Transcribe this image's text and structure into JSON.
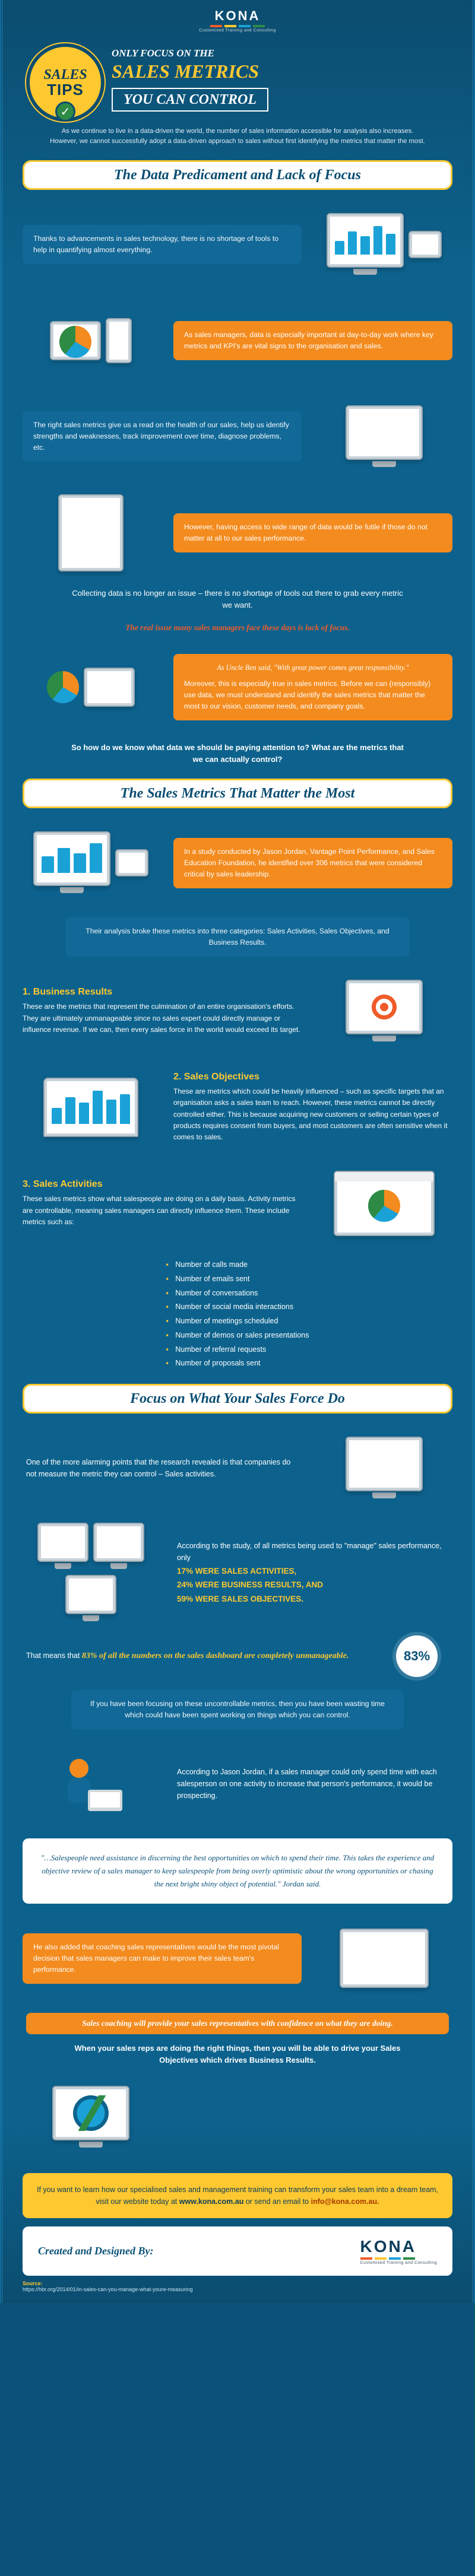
{
  "brand": {
    "name": "KONA",
    "tagline": "Customised Training and Consulting",
    "bar_colors": [
      "#f15b2a",
      "#fdc830",
      "#1aa2d7",
      "#2e8b45"
    ]
  },
  "header": {
    "badge_top": "Sales",
    "badge_bottom": "TIPS",
    "pretitle": "ONLY FOCUS ON THE",
    "title": "SALES METRICS",
    "boxed": "YOU CAN CONTROL",
    "intro": "As we continue to live in a data-driven the world, the number of sales information accessible for analysis also increases. However, we cannot successfully adopt a data-driven approach to sales without first identifying the metrics that matter the most."
  },
  "s1": {
    "heading": "The Data Predicament and Lack of Focus",
    "p1": "Thanks to advancements in sales technology, there is no shortage of tools to help in quantifying almost everything.",
    "o1": "As sales managers, data is especially important at day-to-day work where key metrics and KPI's are vital signs to the organisation and sales.",
    "p2": "The right sales metrics give us a read on the health of our sales, help us identify strengths and weaknesses, track improvement over time, diagnose problems, etc.",
    "o2": "However, having access to wide range of data would be futile if those do not matter at all to our sales performance.",
    "p3": "Collecting data is no longer an issue – there is no shortage of tools out there to grab every metric we want.",
    "red": "The real issue many sales managers face these days is lack of focus.",
    "o3a": "As Uncle Ben said, \"With great power comes great responsibility.\"",
    "o3b": "Moreover, this is especially true in sales metrics. Before we can (responsibly) use data, we must understand and identify the sales metrics that matter the most to our vision, customer needs, and company goals.",
    "p4": "So how do we know what data we should be paying attention to? What are the metrics that we can actually control?"
  },
  "s2": {
    "heading": "The Sales Metrics That Matter the Most",
    "o1": "In a study conducted by Jason Jordan, Vantage Point Performance, and Sales Education Foundation, he identified over 306 metrics that were considered critical by sales leadership.",
    "b1": "Their analysis broke these metrics into three categories: Sales Activities, Sales Objectives, and Business Results.",
    "cat1_h": "1. Business Results",
    "cat1": "These are the metrics that represent the culmination of an entire organisation's efforts. They are ultimately unmanageable since no sales expert could directly manage or influence revenue. If we can, then every sales force in the world would exceed its target.",
    "cat2_h": "2. Sales Objectives",
    "cat2": "These are metrics which could be heavily influenced – such as specific targets that an organisation asks a sales team to reach. However, these metrics cannot be directly controlled either. This is because acquiring new customers or selling certain types of products requires consent from buyers, and most customers are often sensitive when it comes to sales.",
    "cat3_h": "3. Sales Activities",
    "cat3": "These sales metrics show what salespeople are doing on a daily basis. Activity metrics are controllable, meaning sales managers can directly influence them. These include metrics such as:",
    "bullets": [
      "Number of calls made",
      "Number of emails sent",
      "Number of conversations",
      "Number of social media interactions",
      "Number of meetings scheduled",
      "Number of demos or sales presentations",
      "Number of referral requests",
      "Number of proposals sent"
    ]
  },
  "s3": {
    "heading": "Focus on What Your Sales Force Do",
    "p1": "One of the more alarming points that the research revealed is that companies do not measure the metric they can control – Sales activities.",
    "p2": "According to the study, of all metrics being used to \"manage\" sales performance, only",
    "pcts": [
      "17% WERE SALES ACTIVITIES,",
      "24% WERE BUSINESS RESULTS, AND",
      "59% WERE SALES OBJECTIVES."
    ],
    "p3_a": "That means that ",
    "p3_b": "83% of all the numbers on the sales dashboard are completely unmanageable.",
    "pct_badge": "83%",
    "b1": "If you have been focusing on these uncontrollable metrics, then you have been wasting time which could have been spent working on things which you can control.",
    "p4": "According to Jason Jordan, if a sales manager could only spend time with each salesperson on one activity to increase that person's performance, it would be prospecting.",
    "quote": "\"…Salespeople need assistance in discerning the best opportunities on which to spend their time. This takes the experience and objective review of a sales manager to keep salespeople from being overly optimistic about the wrong opportunities or chasing the next bright shiny object of potential.\" Jordan said.",
    "o1": "He also added that coaching sales representatives would be the most pivotal decision that sales managers can make to improve their sales team's performance.",
    "gold_italic": "Sales coaching will provide your sales representatives with confidence on what they are doing.",
    "p5": "When your sales reps are doing the right things, then you will be able to drive your Sales Objectives which drives Business Results."
  },
  "footer": {
    "cta_a": "If you want to learn how our specialised sales and management training can transform your sales team into a dream team, visit our website today at ",
    "cta_link": "www.kona.com.au",
    "cta_b": " or send an email to ",
    "cta_email": "info@kona.com.au.",
    "created": "Created and Designed By:",
    "source_label": "Source:",
    "source": "https://hbr.org/2014/01/in-sales-can-you-manage-what-youre-measuring"
  },
  "style": {
    "bg": "#0d628d",
    "accent": "#fdc830",
    "orange": "#f38b1e",
    "blue_box": "#126896",
    "red": "#f15b2a"
  }
}
